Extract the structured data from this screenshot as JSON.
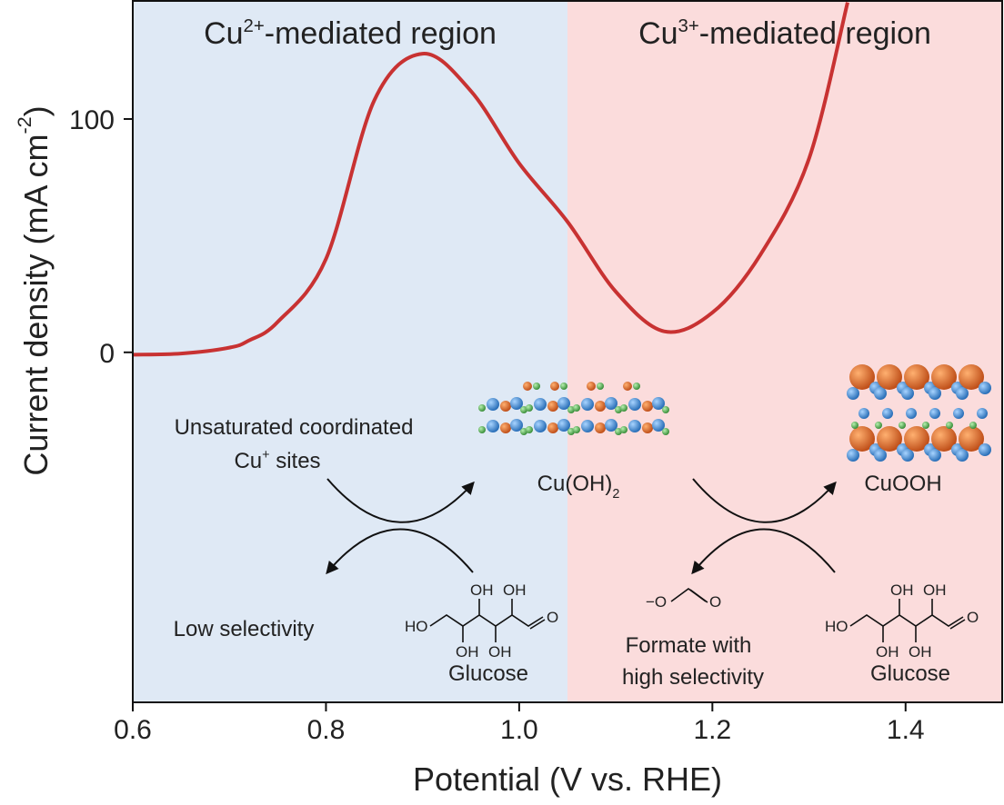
{
  "chart_data": {
    "type": "line",
    "xlabel": "Potential (V vs. RHE)",
    "ylabel": [
      "Current density (mA cm",
      "-2",
      ")"
    ],
    "x": [
      0.6,
      0.65,
      0.7,
      0.72,
      0.75,
      0.8,
      0.85,
      0.9,
      0.95,
      1.0,
      1.05,
      1.1,
      1.15,
      1.2,
      1.25,
      1.3,
      1.34
    ],
    "series": [
      {
        "color": "#c83232",
        "values": [
          -1,
          -0.5,
          2,
          5,
          13,
          40,
          108,
          128,
          112,
          81,
          56,
          26,
          9,
          17,
          42,
          83,
          150
        ]
      }
    ],
    "xlim": [
      0.6,
      1.5
    ],
    "ylim": [
      -150,
      151
    ],
    "xticks": [
      0.6,
      0.8,
      {
        "value": 1.0,
        "label": "1.0"
      },
      1.2,
      1.4
    ],
    "yticks": [
      0,
      100
    ],
    "regions": [
      {
        "label": [
          "Cu",
          "2+",
          "-mediated region"
        ],
        "xrange": [
          0.6,
          1.05
        ],
        "color": "#dfe9f5"
      },
      {
        "label": [
          "Cu",
          "3+",
          "-mediated region"
        ],
        "xrange": [
          1.05,
          1.5
        ],
        "color": "#fbdcdc"
      }
    ]
  },
  "scheme": {
    "unsaturated": "Unsaturated coordinated",
    "cu_sites": [
      "Cu",
      "+",
      " sites"
    ],
    "cuoh2": [
      "Cu(OH)",
      "2"
    ],
    "cuooh": "CuOOH",
    "low_selectivity": "Low selectivity",
    "glucose": [
      "Glucose",
      "Glucose"
    ],
    "formate": [
      "Formate with",
      "high selectivity"
    ],
    "formate_atoms": [
      "−O",
      "O"
    ],
    "glucose_atoms": [
      "OH",
      "OH",
      "HO",
      "OH",
      "OH",
      "O"
    ]
  }
}
